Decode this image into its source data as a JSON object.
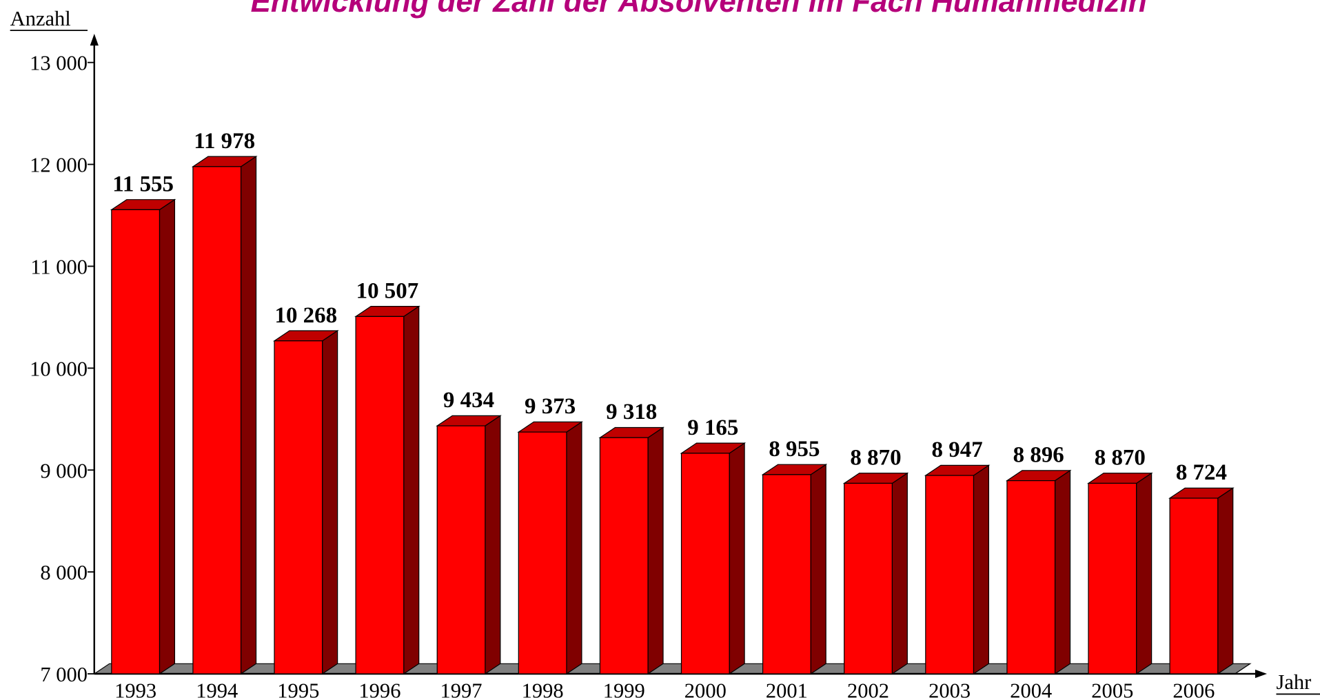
{
  "chart_data": {
    "type": "bar3d",
    "title": "Entwicklung der Zahl der Absolventen im Fach Humanmedizin",
    "y_label": "Anzahl",
    "x_label": "Jahr",
    "categories": [
      "1993",
      "1994",
      "1995",
      "1996",
      "1997",
      "1998",
      "1999",
      "2000",
      "2001",
      "2002",
      "2003",
      "2004",
      "2005",
      "2006"
    ],
    "values": [
      11555,
      11978,
      10268,
      10507,
      9434,
      9373,
      9318,
      9165,
      8955,
      8870,
      8947,
      8896,
      8870,
      8724
    ],
    "value_labels": [
      "11 555",
      "11 978",
      "10 268",
      "10 507",
      "9 434",
      "9 373",
      "9 318",
      "9 165",
      "8 955",
      "8 870",
      "8 947",
      "8 896",
      "8 870",
      "8 724"
    ],
    "color": "#ff0000",
    "side_color": "#800000",
    "top_color": "#c00000",
    "ylim": [
      7000,
      13000
    ],
    "yticks": [
      {
        "value": 7000,
        "label": "7 000"
      },
      {
        "value": 8000,
        "label": "8 000"
      },
      {
        "value": 9000,
        "label": "9 000"
      },
      {
        "value": 10000,
        "label": "10 000"
      },
      {
        "value": 11000,
        "label": "11 000"
      },
      {
        "value": 12000,
        "label": "12 000"
      },
      {
        "value": 13000,
        "label": "13 000"
      }
    ]
  }
}
